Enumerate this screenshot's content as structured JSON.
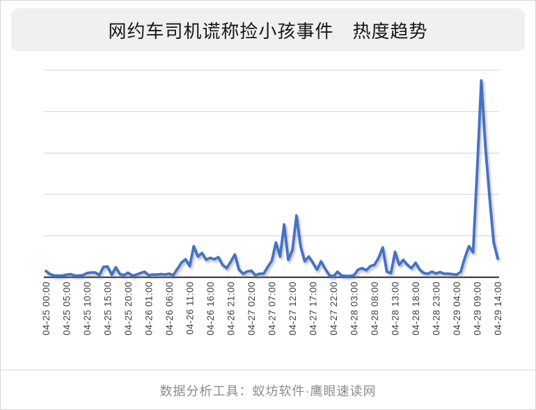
{
  "title": "网约车司机谎称捡小孩事件　热度趋势",
  "footer": {
    "text": "数据分析工具：蚁坊软件·鹰眼速读网"
  },
  "colors": {
    "line": "#4472C4",
    "gridline": "#d2d2d2",
    "axis": "#3f3f3f",
    "tick_text": "#3f3f3f",
    "title_bg": "#f0f0f0",
    "footer_text": "#8c8c8c"
  },
  "chart_data": {
    "type": "line",
    "title": "网约车司机谎称捡小孩事件　热度趋势",
    "series_name": "热度趋势",
    "xlabel": "",
    "ylabel": "",
    "ylim": [
      0,
      100
    ],
    "grid": "horizontal",
    "gridline_count": 5,
    "legend": "none",
    "x_start": "04-25 00:00",
    "x_end": "04-29 14:00",
    "x_step_hours": 1,
    "tick_every_hours": 5,
    "tick_labels": [
      "04-25 00:00",
      "04-25 05:00",
      "04-25 10:00",
      "04-25 15:00",
      "04-25 20:00",
      "04-26 01:00",
      "04-26 06:00",
      "04-26 11:00",
      "04-26 16:00",
      "04-26 21:00",
      "04-27 02:00",
      "04-27 07:00",
      "04-27 12:00",
      "04-27 17:00",
      "04-27 22:00",
      "04-28 03:00",
      "04-28 08:00",
      "04-28 13:00",
      "04-28 18:00",
      "04-28 23:00",
      "04-29 04:00",
      "04-29 09:00",
      "04-29 14:00"
    ],
    "values": [
      3,
      1.5,
      0.8,
      0.8,
      0.8,
      1.2,
      1.5,
      0.8,
      0.8,
      1,
      2,
      2.3,
      2.3,
      1,
      5,
      5.2,
      1.2,
      4.8,
      1.5,
      1,
      2.2,
      0.8,
      1.2,
      2,
      2.7,
      1,
      1.3,
      1.3,
      1.5,
      1.3,
      1.7,
      1,
      4,
      7,
      8.7,
      5.4,
      15,
      10,
      11.7,
      8.5,
      9.4,
      8.7,
      9.7,
      6,
      4.4,
      7.5,
      11,
      3.7,
      1.7,
      2.8,
      3.2,
      1,
      1.7,
      1.7,
      5,
      8,
      16.8,
      10,
      25.5,
      8.4,
      13,
      29.8,
      15,
      7.7,
      10,
      7,
      3.7,
      7.7,
      4,
      1,
      0.4,
      2.7,
      0.8,
      0.6,
      0.6,
      1,
      3.7,
      4.4,
      3.4,
      5.4,
      6,
      9.4,
      14.4,
      2.7,
      2,
      12.2,
      6,
      8.4,
      6,
      4.4,
      7,
      3.7,
      2,
      1.7,
      2.7,
      1.8,
      2.5,
      1.7,
      1.7,
      1.5,
      1.2,
      2.7,
      9.5,
      15,
      12,
      52,
      95,
      63,
      39,
      17,
      9
    ]
  }
}
